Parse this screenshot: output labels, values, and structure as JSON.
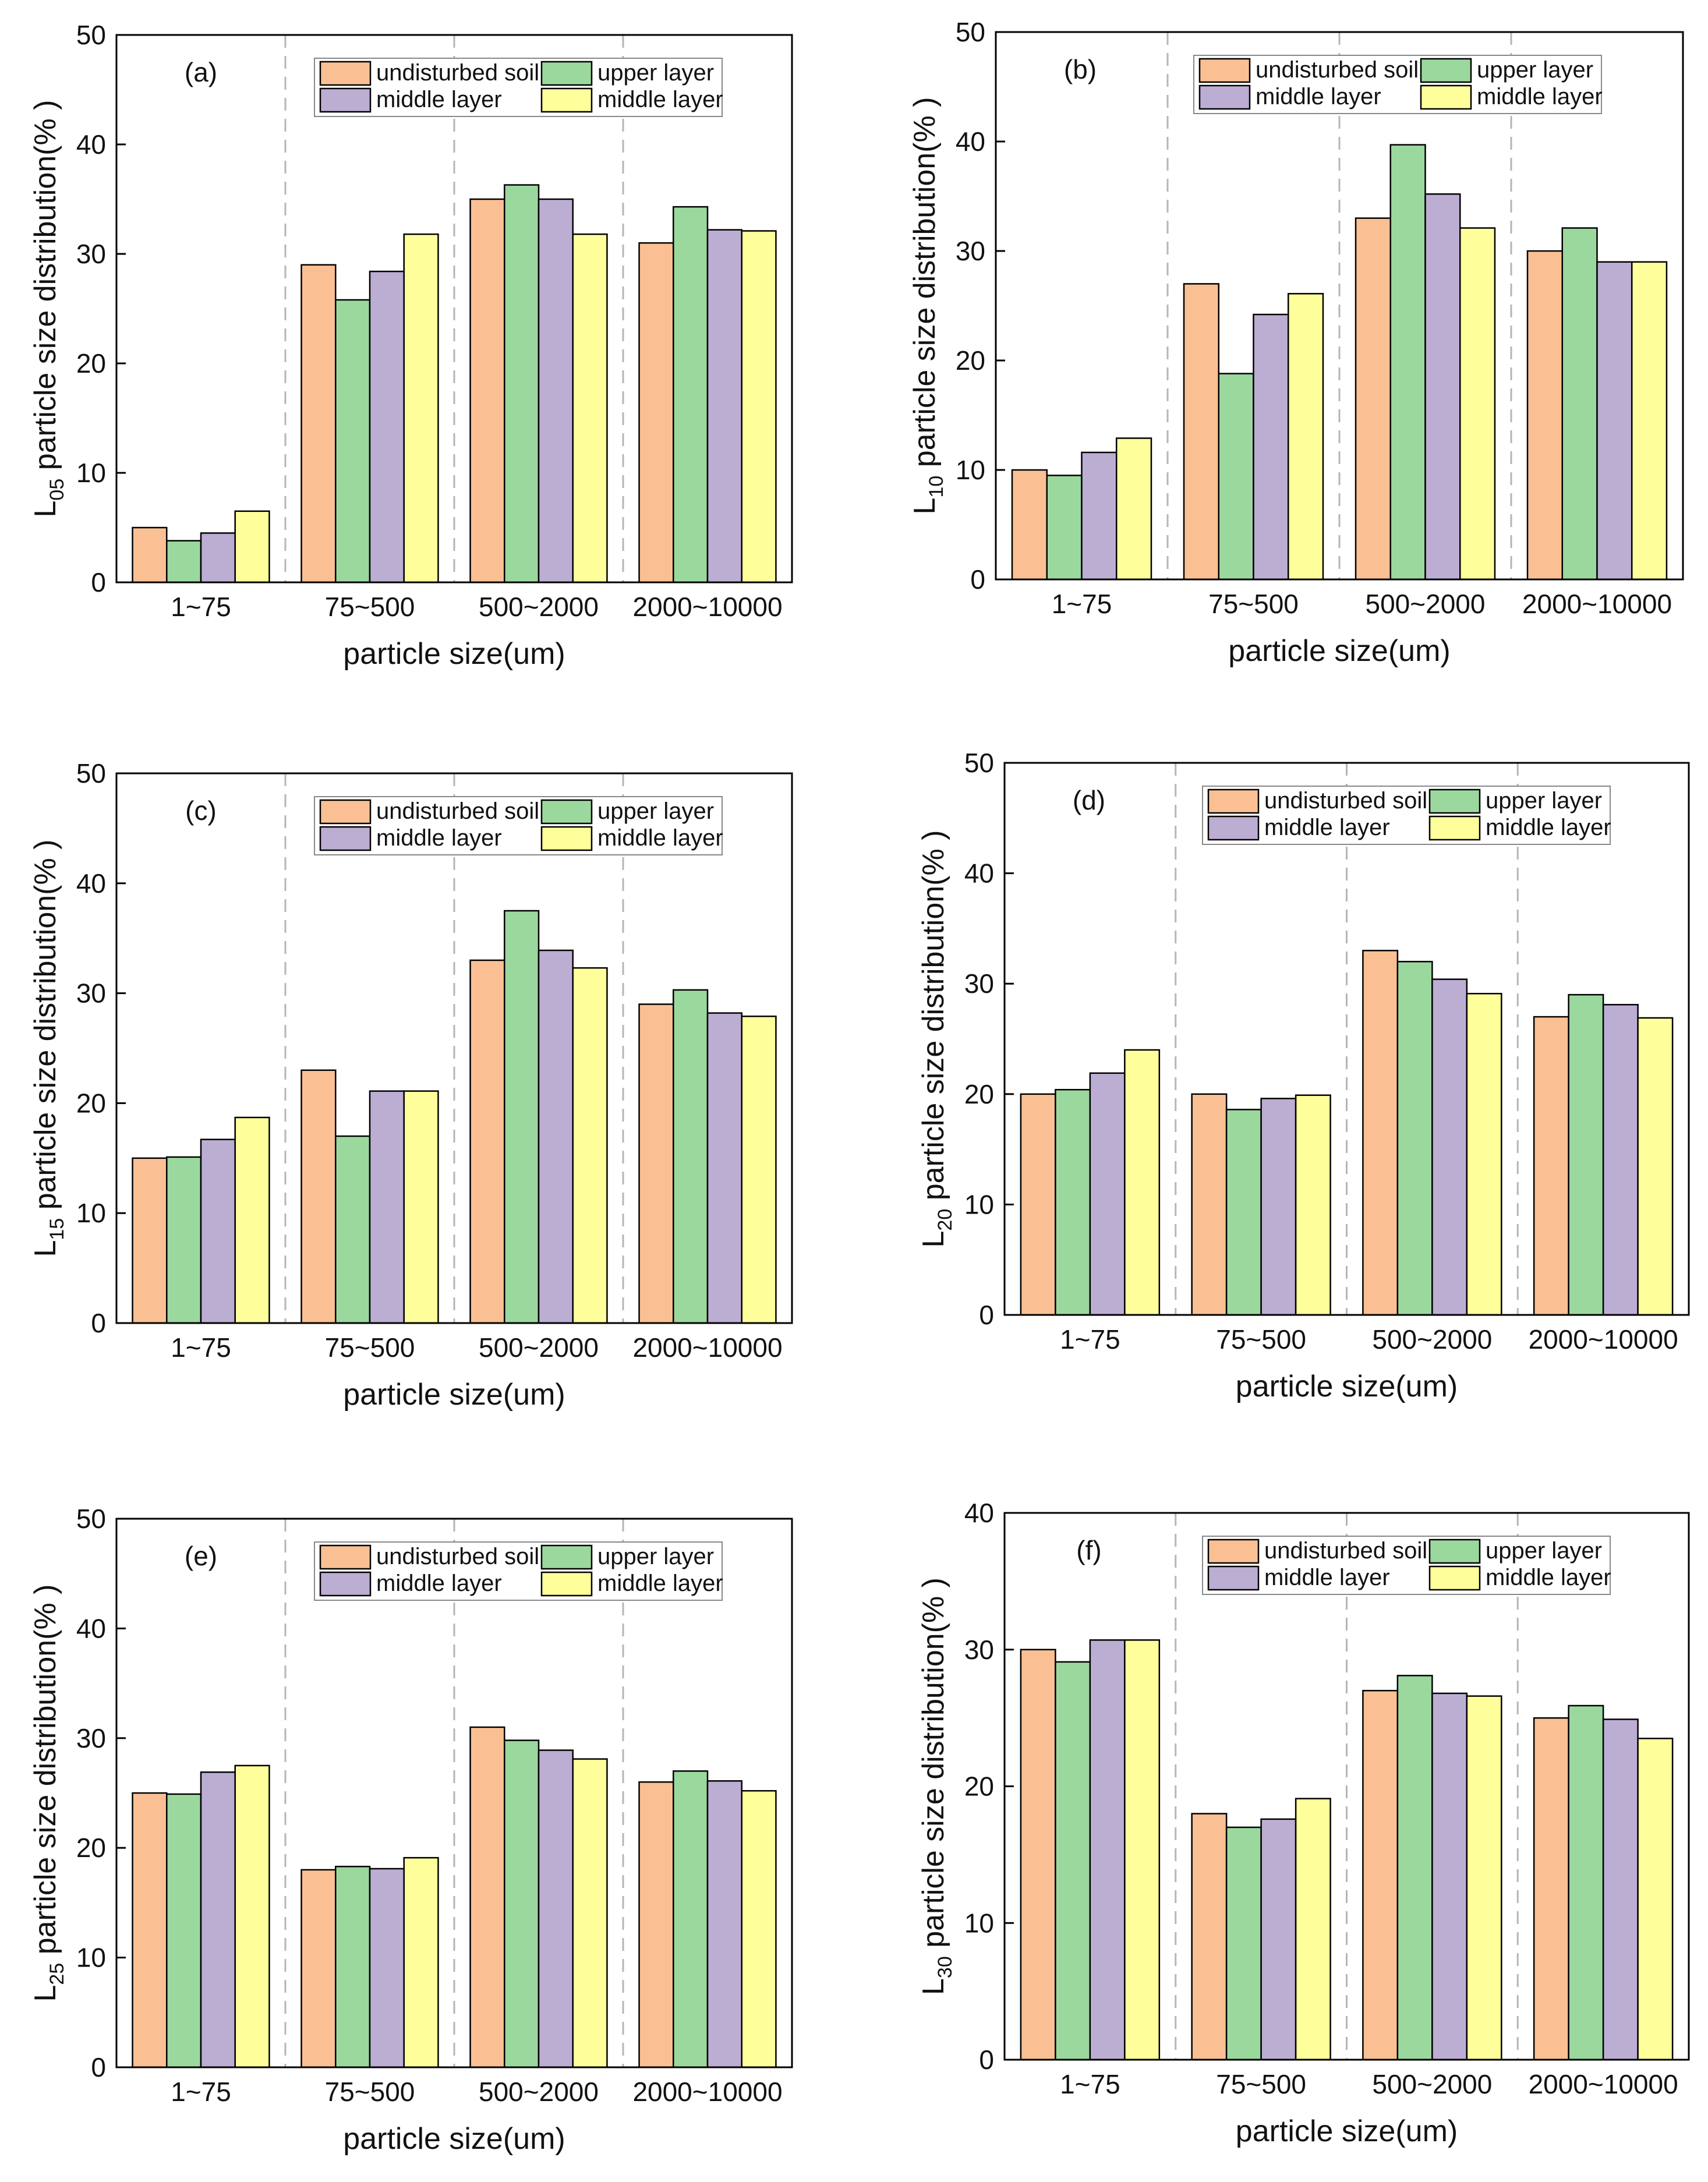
{
  "figure": {
    "colors": {
      "undisturbed": "#FAC093",
      "upper": "#9BD89E",
      "middle": "#BCADD3",
      "lower": "#FEFE9B",
      "divider": "#b5b5b5",
      "axis": "#000000"
    }
  },
  "chart_data": [
    {
      "type": "bar",
      "panel": "(a)",
      "categories": [
        "1~75",
        "75~500",
        "500~2000",
        "2000~10000"
      ],
      "series": [
        {
          "name": "undisturbed soil",
          "values": [
            5.0,
            29.0,
            35.0,
            31.0
          ]
        },
        {
          "name": "upper layer",
          "values": [
            3.8,
            25.8,
            36.3,
            34.3
          ]
        },
        {
          "name": "middle layer",
          "values": [
            4.5,
            28.4,
            35.0,
            32.2
          ]
        },
        {
          "name": "middle layer",
          "values": [
            6.5,
            31.8,
            31.8,
            32.1
          ]
        }
      ],
      "ylabel_main": "L",
      "ylabel_sub": "05",
      "ylabel_rest": " particle size distribution(% )",
      "xlabel": "particle size(um)",
      "ylim": [
        0,
        50
      ],
      "yticks": [
        0,
        10,
        20,
        30,
        40,
        50
      ],
      "legend": [
        "undisturbed soil",
        "upper layer",
        "middle layer",
        "middle layer"
      ]
    },
    {
      "type": "bar",
      "panel": "(b)",
      "categories": [
        "1~75",
        "75~500",
        "500~2000",
        "2000~10000"
      ],
      "series": [
        {
          "name": "undisturbed soil",
          "values": [
            10.0,
            27.0,
            33.0,
            30.0
          ]
        },
        {
          "name": "upper layer",
          "values": [
            9.5,
            18.8,
            39.7,
            32.1
          ]
        },
        {
          "name": "middle layer",
          "values": [
            11.6,
            24.2,
            35.2,
            29.0
          ]
        },
        {
          "name": "middle layer",
          "values": [
            12.9,
            26.1,
            32.1,
            29.0
          ]
        }
      ],
      "ylabel_main": "L",
      "ylabel_sub": "10",
      "ylabel_rest": " particle size distribution(% )",
      "xlabel": "particle size(um)",
      "ylim": [
        0,
        50
      ],
      "yticks": [
        0,
        10,
        20,
        30,
        40,
        50
      ],
      "legend": [
        "undisturbed soil",
        "upper layer",
        "middle layer",
        "middle layer"
      ]
    },
    {
      "type": "bar",
      "panel": "(c)",
      "categories": [
        "1~75",
        "75~500",
        "500~2000",
        "2000~10000"
      ],
      "series": [
        {
          "name": "undisturbed soil",
          "values": [
            15.0,
            23.0,
            33.0,
            29.0
          ]
        },
        {
          "name": "upper layer",
          "values": [
            15.1,
            17.0,
            37.5,
            30.3
          ]
        },
        {
          "name": "middle layer",
          "values": [
            16.7,
            21.1,
            33.9,
            28.2
          ]
        },
        {
          "name": "middle layer",
          "values": [
            18.7,
            21.1,
            32.3,
            27.9
          ]
        }
      ],
      "ylabel_main": "L",
      "ylabel_sub": "15",
      "ylabel_rest": " particle size distribution(% )",
      "xlabel": "particle size(um)",
      "ylim": [
        0,
        50
      ],
      "yticks": [
        0,
        10,
        20,
        30,
        40,
        50
      ],
      "legend": [
        "undisturbed soil",
        "upper layer",
        "middle layer",
        "middle layer"
      ]
    },
    {
      "type": "bar",
      "panel": "(d)",
      "categories": [
        "1~75",
        "75~500",
        "500~2000",
        "2000~10000"
      ],
      "series": [
        {
          "name": "undisturbed soil",
          "values": [
            20.0,
            20.0,
            33.0,
            27.0
          ]
        },
        {
          "name": "upper layer",
          "values": [
            20.4,
            18.6,
            32.0,
            29.0
          ]
        },
        {
          "name": "middle layer",
          "values": [
            21.9,
            19.6,
            30.4,
            28.1
          ]
        },
        {
          "name": "middle layer",
          "values": [
            24.0,
            19.9,
            29.1,
            26.9
          ]
        }
      ],
      "ylabel_main": "L",
      "ylabel_sub": "20",
      "ylabel_rest": " particle size distribution(% )",
      "xlabel": "particle size(um)",
      "ylim": [
        0,
        50
      ],
      "yticks": [
        0,
        10,
        20,
        30,
        40,
        50
      ],
      "legend": [
        "undisturbed soil",
        "upper layer",
        "middle layer",
        "middle layer"
      ]
    },
    {
      "type": "bar",
      "panel": "(e)",
      "categories": [
        "1~75",
        "75~500",
        "500~2000",
        "2000~10000"
      ],
      "series": [
        {
          "name": "undisturbed soil",
          "values": [
            25.0,
            18.0,
            31.0,
            26.0
          ]
        },
        {
          "name": "upper layer",
          "values": [
            24.9,
            18.3,
            29.8,
            27.0
          ]
        },
        {
          "name": "middle layer",
          "values": [
            26.9,
            18.1,
            28.9,
            26.1
          ]
        },
        {
          "name": "middle layer",
          "values": [
            27.5,
            19.1,
            28.1,
            25.2
          ]
        }
      ],
      "ylabel_main": "L",
      "ylabel_sub": "25",
      "ylabel_rest": " particle size distribution(% )",
      "xlabel": "particle size(um)",
      "ylim": [
        0,
        50
      ],
      "yticks": [
        0,
        10,
        20,
        30,
        40,
        50
      ],
      "legend": [
        "undisturbed soil",
        "upper layer",
        "middle layer",
        "middle layer"
      ]
    },
    {
      "type": "bar",
      "panel": "(f)",
      "categories": [
        "1~75",
        "75~500",
        "500~2000",
        "2000~10000"
      ],
      "series": [
        {
          "name": "undisturbed soil",
          "values": [
            30.0,
            18.0,
            27.0,
            25.0
          ]
        },
        {
          "name": "upper layer",
          "values": [
            29.1,
            17.0,
            28.1,
            25.9
          ]
        },
        {
          "name": "middle layer",
          "values": [
            30.7,
            17.6,
            26.8,
            24.9
          ]
        },
        {
          "name": "middle layer",
          "values": [
            30.7,
            19.1,
            26.6,
            23.5
          ]
        }
      ],
      "ylabel_main": "L",
      "ylabel_sub": "30",
      "ylabel_rest": " particle size distribution(% )",
      "xlabel": "particle size(um)",
      "ylim": [
        0,
        40
      ],
      "yticks": [
        0,
        10,
        20,
        30,
        40
      ],
      "legend": [
        "undisturbed soil",
        "upper layer",
        "middle layer",
        "middle layer"
      ]
    }
  ]
}
